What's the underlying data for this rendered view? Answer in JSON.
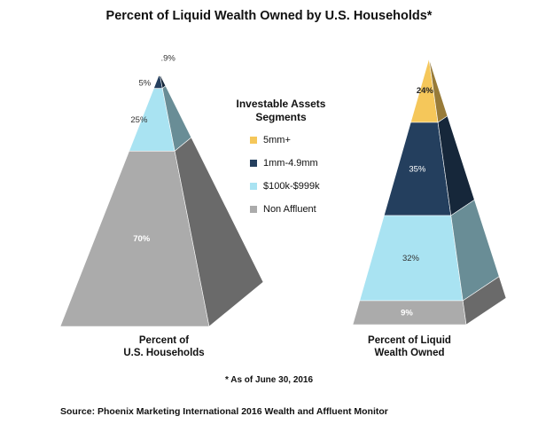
{
  "title": "Percent of Liquid Wealth Owned by U.S. Households*",
  "legend": {
    "title_line1": "Investable Assets",
    "title_line2": "Segments",
    "items": [
      {
        "label": "5mm+",
        "color": "#F5C75A"
      },
      {
        "label": "1mm-4.9mm",
        "color": "#243F5E"
      },
      {
        "label": "$100k-$999k",
        "color": "#A9E3F2"
      },
      {
        "label": "Non Affluent",
        "color": "#ABABAB"
      }
    ]
  },
  "footnote": "* As of June 30, 2016",
  "source": "Source: Phoenix Marketing International 2016 Wealth and Affluent Monitor",
  "chart_data": [
    {
      "type": "pyramid",
      "caption_line1": "Percent of",
      "caption_line2": "U.S. Households",
      "segments": [
        {
          "segment": "5mm+",
          "value": 0.9,
          "label": ".9%"
        },
        {
          "segment": "1mm-4.9mm",
          "value": 5,
          "label": "5%"
        },
        {
          "segment": "$100k-$999k",
          "value": 25,
          "label": "25%"
        },
        {
          "segment": "Non Affluent",
          "value": 70,
          "label": "70%"
        }
      ]
    },
    {
      "type": "pyramid",
      "caption_line1": "Percent of Liquid",
      "caption_line2": "Wealth Owned",
      "segments": [
        {
          "segment": "5mm+",
          "value": 24,
          "label": "24%"
        },
        {
          "segment": "1mm-4.9mm",
          "value": 35,
          "label": "35%"
        },
        {
          "segment": "$100k-$999k",
          "value": 32,
          "label": "32%"
        },
        {
          "segment": "Non Affluent",
          "value": 9,
          "label": "9%"
        }
      ]
    }
  ]
}
